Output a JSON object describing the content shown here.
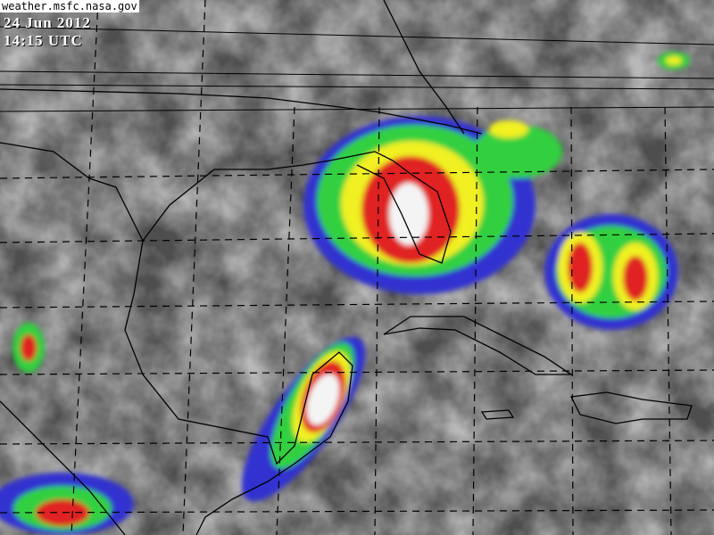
{
  "source_label": "weather.msfc.nasa.gov",
  "date": "24 Jun 2012",
  "time": "14:15 UTC",
  "image_type": "infrared satellite imagery, color-enhanced cloud tops",
  "region": "Gulf of Mexico, Florida, Caribbean",
  "colors": {
    "background_gray": "#5a5a5a",
    "blue": "#3030d0",
    "purple": "#7020a0",
    "green": "#30d040",
    "yellow": "#f0f020",
    "red": "#e02020",
    "white": "#f4f4f4"
  }
}
